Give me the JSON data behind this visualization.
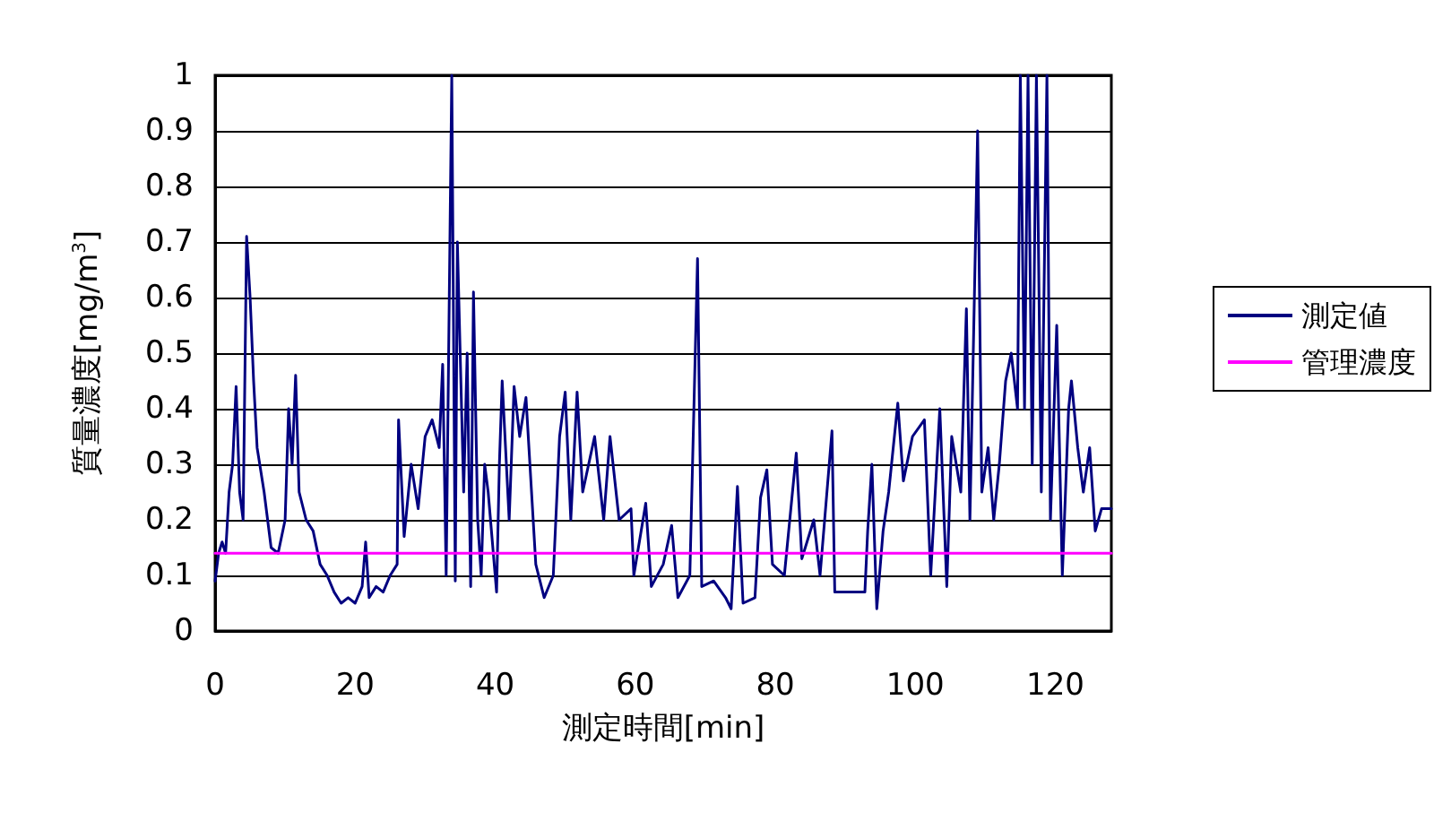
{
  "chart_data": {
    "type": "line",
    "xlabel": "測定時間[min]",
    "ylabel": "質量濃度[mg/m$^{3}$]",
    "xlim": [
      0,
      128
    ],
    "xticks": [
      0,
      20,
      40,
      60,
      80,
      100,
      120
    ],
    "ylim": [
      0,
      1
    ],
    "yticks": [
      0,
      0.1,
      0.2,
      0.3,
      0.4,
      0.5,
      0.6,
      0.7,
      0.8,
      0.9,
      1
    ],
    "grid": "y",
    "legend": "right",
    "marker": "none",
    "line_style": "solid",
    "series": [
      {
        "name": "測定値",
        "color": "#000080",
        "x": [
          0,
          0.5,
          1,
          1.5,
          2,
          2.5,
          3,
          3.5,
          4,
          4.5,
          5,
          5.5,
          6,
          7,
          7.5,
          8,
          9,
          10,
          10.5,
          11,
          11.5,
          12,
          13,
          14,
          15,
          16,
          17,
          18,
          19,
          20,
          21,
          21.5,
          22,
          23,
          24,
          25,
          26,
          26.2,
          27,
          28,
          29,
          30,
          31,
          32,
          32.5,
          33,
          33.8,
          34.3,
          34.6,
          35.5,
          36,
          36.5,
          36.9,
          37.5,
          38,
          38.5,
          39,
          40.2,
          40.6,
          41,
          42,
          42.7,
          43.5,
          44.4,
          45.8,
          47,
          48.3,
          49.2,
          50,
          50.8,
          51.7,
          52.5,
          54.2,
          55.5,
          56.4,
          57.7,
          59.4,
          59.8,
          61.5,
          62.3,
          64,
          65.2,
          66.1,
          67.8,
          68.9,
          69.5,
          71.2,
          72.9,
          73.7,
          74.6,
          75.4,
          77.1,
          77.9,
          78.8,
          79.6,
          81.3,
          83,
          83.8,
          85.5,
          86.4,
          88.1,
          88.5,
          90.7,
          92.8,
          93.2,
          93.8,
          94.5,
          95.4,
          96.2,
          97.5,
          98.3,
          99.6,
          101.3,
          102.2,
          103.5,
          104.5,
          105.2,
          106.5,
          107.3,
          107.8,
          108.5,
          108.9,
          109.5,
          110.4,
          111.2,
          112,
          112.9,
          113.7,
          114.6,
          115,
          115.6,
          116.1,
          116.7,
          117.3,
          118,
          118.8,
          119.3,
          120.2,
          121,
          121.9,
          122.3,
          123.2,
          124,
          124.9,
          125.7,
          126.6,
          128
        ],
        "values": [
          0.09,
          0.14,
          0.16,
          0.14,
          0.25,
          0.3,
          0.44,
          0.25,
          0.2,
          0.71,
          0.6,
          0.45,
          0.33,
          0.25,
          0.2,
          0.15,
          0.14,
          0.2,
          0.4,
          0.3,
          0.46,
          0.25,
          0.2,
          0.18,
          0.12,
          0.1,
          0.07,
          0.05,
          0.06,
          0.05,
          0.08,
          0.16,
          0.06,
          0.08,
          0.07,
          0.1,
          0.12,
          0.38,
          0.17,
          0.3,
          0.22,
          0.35,
          0.38,
          0.33,
          0.48,
          0.1,
          1,
          0.09,
          0.7,
          0.25,
          0.5,
          0.08,
          0.61,
          0.2,
          0.1,
          0.3,
          0.25,
          0.07,
          0.3,
          0.45,
          0.2,
          0.44,
          0.35,
          0.42,
          0.12,
          0.06,
          0.1,
          0.35,
          0.43,
          0.2,
          0.43,
          0.25,
          0.35,
          0.2,
          0.35,
          0.2,
          0.22,
          0.1,
          0.23,
          0.08,
          0.12,
          0.19,
          0.06,
          0.1,
          0.67,
          0.08,
          0.09,
          0.06,
          0.04,
          0.26,
          0.05,
          0.06,
          0.24,
          0.29,
          0.12,
          0.1,
          0.32,
          0.13,
          0.2,
          0.1,
          0.36,
          0.07,
          0.07,
          0.07,
          0.18,
          0.3,
          0.04,
          0.18,
          0.25,
          0.41,
          0.27,
          0.35,
          0.38,
          0.1,
          0.4,
          0.08,
          0.35,
          0.25,
          0.58,
          0.2,
          0.64,
          0.9,
          0.25,
          0.33,
          0.2,
          0.3,
          0.45,
          0.5,
          0.4,
          1,
          0.4,
          1,
          0.3,
          1,
          0.25,
          1,
          0.2,
          0.55,
          0.1,
          0.4,
          0.45,
          0.33,
          0.25,
          0.33,
          0.18,
          0.22,
          0.22
        ]
      },
      {
        "name": "管理濃度",
        "color": "#ff00ff",
        "x": [
          0,
          128
        ],
        "values": [
          0.14,
          0.14
        ]
      }
    ]
  }
}
